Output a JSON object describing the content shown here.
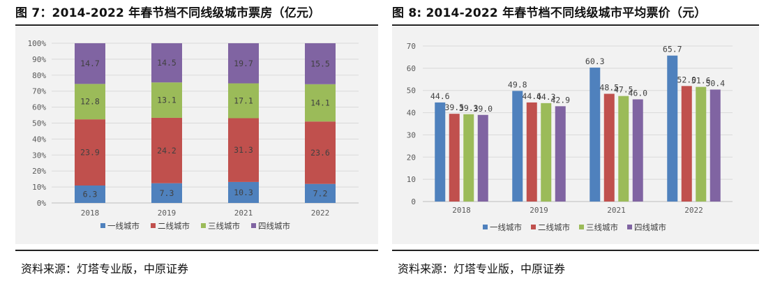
{
  "colors": {
    "tier1": "#4f81bd",
    "tier2": "#c0504d",
    "tier3": "#9bbb59",
    "tier4": "#8064a2"
  },
  "left_panel": {
    "title": "图 7：2014-2022 年春节档不同线级城市票房（亿元）",
    "source": "资料来源：灯塔专业版，中原证券"
  },
  "right_panel": {
    "title": "图 8: 2014-2022 年春节档不同线级城市平均票价（元）",
    "source": "资料来源：灯塔专业版，中原证券"
  },
  "chart_data": [
    {
      "type": "bar",
      "stacked": true,
      "percent_stacked": true,
      "categories": [
        "2018",
        "2019",
        "2021",
        "2022"
      ],
      "series": [
        {
          "name": "一线城市",
          "values": [
            6.3,
            7.3,
            10.3,
            7.2
          ]
        },
        {
          "name": "二线城市",
          "values": [
            23.9,
            24.2,
            31.3,
            23.6
          ]
        },
        {
          "name": "三线城市",
          "values": [
            12.8,
            13.1,
            17.1,
            14.1
          ]
        },
        {
          "name": "四线城市",
          "values": [
            14.7,
            14.5,
            19.7,
            15.5
          ]
        }
      ],
      "data_labels": [
        [
          "6.3",
          "7.3",
          "10.3",
          "7.2"
        ],
        [
          "23.9",
          "24.2",
          "31.3",
          "23.6"
        ],
        [
          "12.8",
          "13.1",
          "17.1",
          "14.1"
        ],
        [
          "14.7",
          "14.5",
          "19.7",
          "15.5"
        ]
      ],
      "y_ticks": [
        "0%",
        "10%",
        "20%",
        "30%",
        "40%",
        "50%",
        "60%",
        "70%",
        "80%",
        "90%",
        "100%"
      ],
      "ylim": [
        0,
        100
      ],
      "grid": true,
      "legend": "bottom"
    },
    {
      "type": "bar",
      "stacked": false,
      "categories": [
        "2018",
        "2019",
        "2021",
        "2022"
      ],
      "series": [
        {
          "name": "一线城市",
          "values": [
            44.6,
            49.8,
            60.3,
            65.7
          ]
        },
        {
          "name": "二线城市",
          "values": [
            39.5,
            44.6,
            48.5,
            52.0
          ]
        },
        {
          "name": "三线城市",
          "values": [
            39.3,
            44.3,
            47.5,
            51.6
          ]
        },
        {
          "name": "四线城市",
          "values": [
            39.0,
            42.9,
            46.0,
            50.4
          ]
        }
      ],
      "data_labels": [
        [
          "44.6",
          "49.8",
          "60.3",
          "65.7"
        ],
        [
          "39.5",
          "44.6",
          "48.5",
          "52.0"
        ],
        [
          "39.3",
          "44.3",
          "47.5",
          "51.6"
        ],
        [
          "39.0",
          "42.9",
          "46.0",
          "50.4"
        ]
      ],
      "y_ticks": [
        "0",
        "10",
        "20",
        "30",
        "40",
        "50",
        "60",
        "70"
      ],
      "ylim": [
        0,
        70
      ],
      "grid": true,
      "legend": "bottom"
    }
  ]
}
